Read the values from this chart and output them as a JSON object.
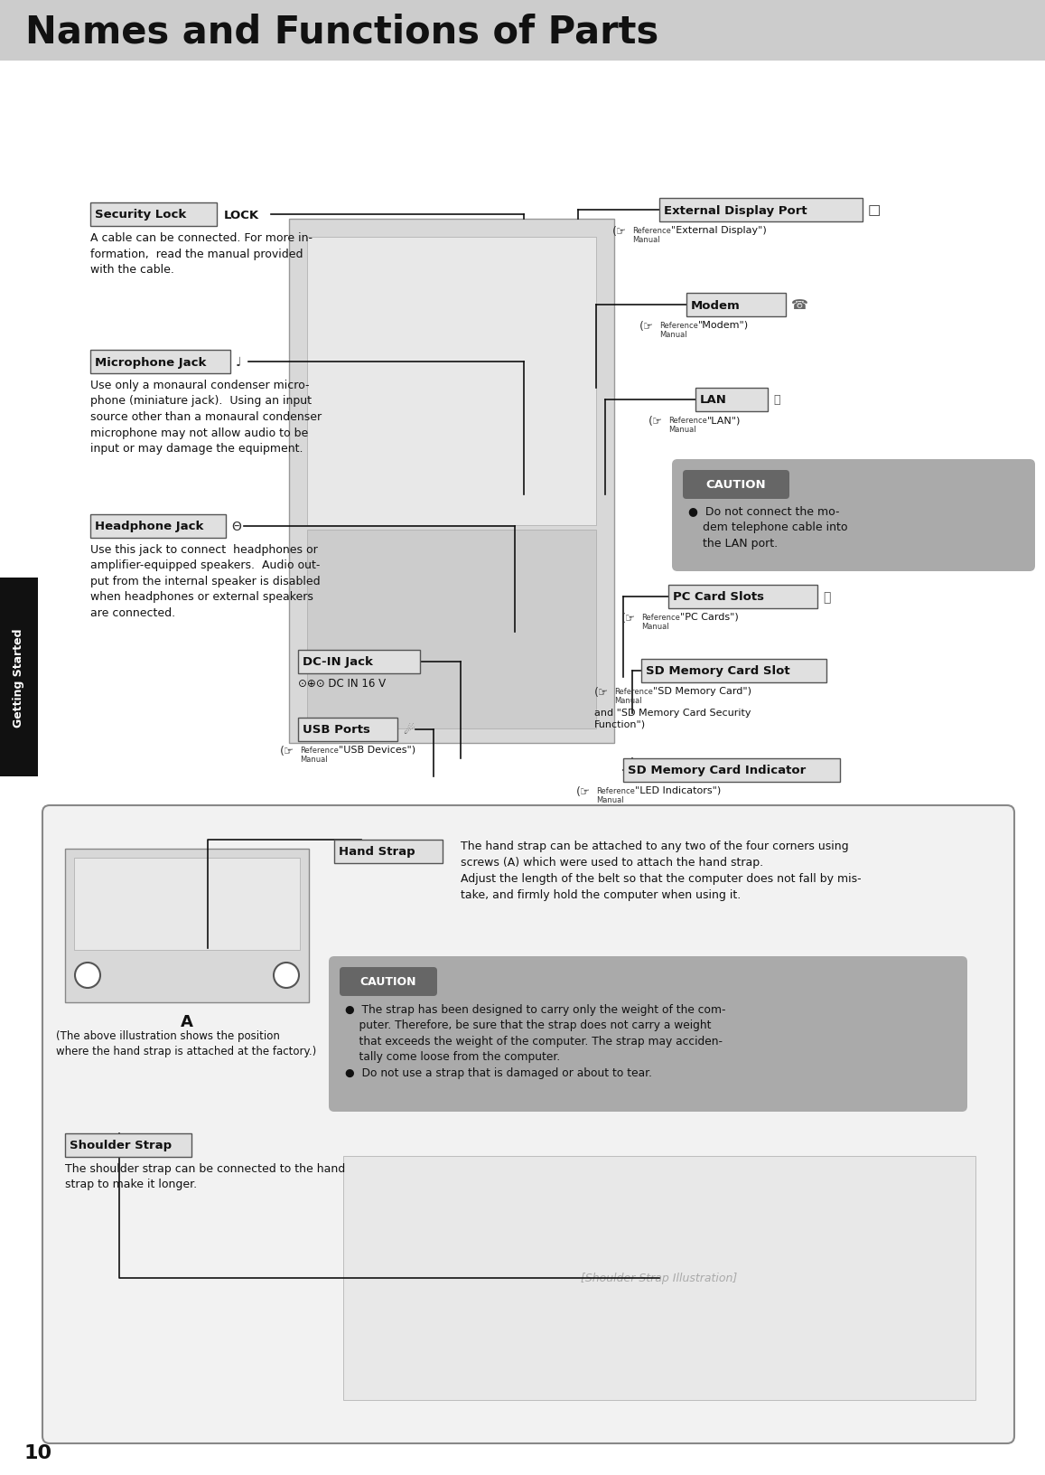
{
  "page_bg": "#ffffff",
  "header_bg": "#cccccc",
  "header_text": "Names and Functions of Parts",
  "header_text_color": "#111111",
  "page_number": "10",
  "sidebar_bg": "#111111",
  "sidebar_text": "Getting Started",
  "sidebar_text_color": "#ffffff"
}
